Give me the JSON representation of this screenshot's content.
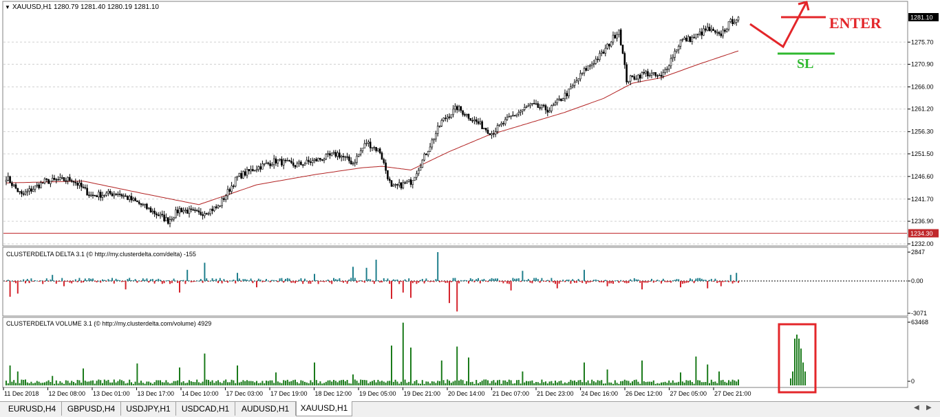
{
  "header": {
    "symbol_line": "XAUUSD,H1  1280.79 1281.40 1280.19 1281.10"
  },
  "chart_data": [
    {
      "type": "candlestick",
      "y_ticks": [
        "1275.70",
        "1270.90",
        "1266.00",
        "1261.20",
        "1256.30",
        "1251.50",
        "1246.60",
        "1241.70",
        "1236.90",
        "1232.00"
      ],
      "ylim": [
        1232.0,
        1283.0
      ],
      "price_labels": {
        "current": "1281.10",
        "level": "1234.30"
      },
      "x_labels": [
        "11 Dec 2018",
        "12 Dec 08:00",
        "13 Dec 01:00",
        "13 Dec 17:00",
        "14 Dec 10:00",
        "17 Dec 03:00",
        "17 Dec 19:00",
        "18 Dec 12:00",
        "19 Dec 05:00",
        "19 Dec 21:00",
        "20 Dec 14:00",
        "21 Dec 07:00",
        "21 Dec 23:00",
        "24 Dec 16:00",
        "26 Dec 12:00",
        "27 Dec 05:00",
        "27 Dec 21:00"
      ],
      "close_anchors": [
        [
          0,
          1246.5
        ],
        [
          8,
          1242.5
        ],
        [
          20,
          1245.5
        ],
        [
          34,
          1246.0
        ],
        [
          44,
          1242.5
        ],
        [
          58,
          1243.0
        ],
        [
          70,
          1240.5
        ],
        [
          84,
          1237.0
        ],
        [
          90,
          1239.5
        ],
        [
          100,
          1238.5
        ],
        [
          110,
          1240.0
        ],
        [
          120,
          1246.5
        ],
        [
          130,
          1248.5
        ],
        [
          140,
          1250.0
        ],
        [
          150,
          1249.0
        ],
        [
          160,
          1250.0
        ],
        [
          172,
          1251.5
        ],
        [
          180,
          1249.5
        ],
        [
          187,
          1254.0
        ],
        [
          194,
          1252.0
        ],
        [
          200,
          1244.0
        ],
        [
          210,
          1245.5
        ],
        [
          216,
          1250.0
        ],
        [
          226,
          1258.5
        ],
        [
          234,
          1261.5
        ],
        [
          242,
          1259.0
        ],
        [
          252,
          1256.0
        ],
        [
          262,
          1259.5
        ],
        [
          272,
          1262.0
        ],
        [
          282,
          1261.0
        ],
        [
          292,
          1265.0
        ],
        [
          300,
          1269.5
        ],
        [
          310,
          1273.5
        ],
        [
          318,
          1278.5
        ],
        [
          322,
          1267.5
        ],
        [
          332,
          1269.0
        ],
        [
          340,
          1268.0
        ],
        [
          350,
          1276.0
        ],
        [
          356,
          1276.5
        ],
        [
          364,
          1278.5
        ],
        [
          370,
          1277.0
        ],
        [
          376,
          1280.0
        ],
        [
          380,
          1281.1
        ]
      ],
      "ma_anchors": [
        [
          0,
          1245.2
        ],
        [
          40,
          1245.6
        ],
        [
          70,
          1243.0
        ],
        [
          100,
          1240.5
        ],
        [
          130,
          1244.8
        ],
        [
          160,
          1247.0
        ],
        [
          185,
          1248.5
        ],
        [
          195,
          1248.8
        ],
        [
          210,
          1248.0
        ],
        [
          230,
          1252.0
        ],
        [
          250,
          1255.5
        ],
        [
          270,
          1258.0
        ],
        [
          290,
          1260.5
        ],
        [
          310,
          1263.5
        ],
        [
          325,
          1266.8
        ],
        [
          340,
          1268.0
        ],
        [
          360,
          1271.0
        ],
        [
          380,
          1273.8
        ]
      ],
      "hline": 1234.3,
      "annotations": {
        "enter_label": "ENTER",
        "sl_label": "SL"
      }
    },
    {
      "type": "bar",
      "title": "CLUSTERDELTA DELTA 3.1 (© http://my.clusterdelta.com/delta) -155",
      "y_ticks": [
        "2847",
        "0.00",
        "-3071"
      ],
      "ylim": [
        -3071,
        2847
      ],
      "positive_color": "#1e7e8c",
      "negative_color": "#d4232b",
      "spikes": [
        [
          2,
          -1500
        ],
        [
          6,
          -1200
        ],
        [
          24,
          600
        ],
        [
          30,
          -500
        ],
        [
          62,
          -800
        ],
        [
          90,
          -1100
        ],
        [
          94,
          1100
        ],
        [
          103,
          1800
        ],
        [
          120,
          800
        ],
        [
          130,
          -600
        ],
        [
          160,
          700
        ],
        [
          180,
          1400
        ],
        [
          187,
          1300
        ],
        [
          192,
          2100
        ],
        [
          200,
          -1700
        ],
        [
          206,
          -1100
        ],
        [
          210,
          -1600
        ],
        [
          224,
          2847
        ],
        [
          230,
          -2100
        ],
        [
          234,
          -2900
        ],
        [
          262,
          -900
        ],
        [
          268,
          1000
        ],
        [
          286,
          -700
        ],
        [
          300,
          1100
        ],
        [
          312,
          -500
        ],
        [
          330,
          -800
        ],
        [
          350,
          -600
        ],
        [
          364,
          -700
        ],
        [
          371,
          -500
        ],
        [
          376,
          600
        ],
        [
          379,
          800
        ]
      ]
    },
    {
      "type": "bar",
      "title": "CLUSTERDELTA VOLUME 3.1 (© http://my.clusterdelta.com/volume) 4929",
      "y_ticks": [
        "63468",
        "0"
      ],
      "ylim": [
        0,
        63468
      ],
      "bar_color": "#1a7a1a",
      "spikes": [
        [
          2,
          20000
        ],
        [
          6,
          14000
        ],
        [
          24,
          9500
        ],
        [
          40,
          17000
        ],
        [
          68,
          22000
        ],
        [
          90,
          18000
        ],
        [
          103,
          32000
        ],
        [
          120,
          20000
        ],
        [
          140,
          13000
        ],
        [
          160,
          23000
        ],
        [
          180,
          11000
        ],
        [
          200,
          40000
        ],
        [
          206,
          63000
        ],
        [
          210,
          38000
        ],
        [
          226,
          25000
        ],
        [
          234,
          39000
        ],
        [
          240,
          28000
        ],
        [
          268,
          14000
        ],
        [
          300,
          23000
        ],
        [
          312,
          16000
        ],
        [
          330,
          25000
        ],
        [
          350,
          13000
        ],
        [
          358,
          29000
        ],
        [
          364,
          21000
        ],
        [
          370,
          14000
        ],
        [
          378,
          5000
        ]
      ],
      "highlight_bars": [
        7000,
        14000,
        47000,
        51000,
        47000,
        37000,
        23000,
        14000
      ]
    }
  ],
  "tabs": [
    {
      "label": "EURUSD,H4"
    },
    {
      "label": "GBPUSD,H4"
    },
    {
      "label": "USDJPY,H1"
    },
    {
      "label": "USDCAD,H1"
    },
    {
      "label": "AUDUSD,H1"
    },
    {
      "label": "XAUUSD,H1",
      "active": true
    }
  ]
}
